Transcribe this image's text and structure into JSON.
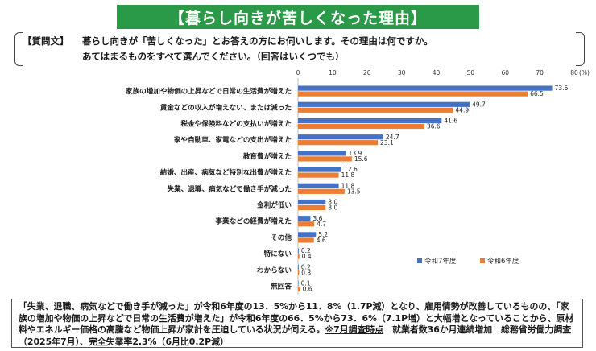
{
  "title": "【暮らし向きが苦しくなった理由】",
  "question": {
    "label": "【質問文】",
    "line1": "暮らし向きが「苦しくなった」とお答えの方にお伺いします。その理由は何ですか。",
    "line2": "あてはまるものをすべて選んでください。（回答はいくつでも）"
  },
  "chart_data": {
    "type": "bar",
    "orientation": "horizontal",
    "unit_label": "(%)",
    "xlim": [
      0,
      80
    ],
    "ticks": [
      "0",
      "10",
      "20",
      "30",
      "40",
      "50",
      "60",
      "70",
      "80"
    ],
    "categories": [
      "家族の増加や物価の上昇などで日常の生活費が増えた",
      "賃金などの収入が増えない、または減った",
      "税金や保険料などの支払いが増えた",
      "家や自動車、家電などの支出が増えた",
      "教育費が増えた",
      "結婚、出産、病気など特別な出費が増えた",
      "失業、退職、病気などで働き手が減った",
      "金利が低い",
      "事業などの経費が増えた",
      "その他",
      "特にない",
      "わからない",
      "無回答"
    ],
    "series": [
      {
        "name": "令和7年度",
        "color": "#4472c4",
        "values": [
          73.6,
          49.7,
          41.6,
          24.7,
          13.9,
          12.6,
          11.8,
          8.0,
          3.6,
          5.2,
          0.2,
          0.2,
          0.1
        ],
        "labels": [
          "73.6",
          "49.7",
          "41.6",
          "24.7",
          "13.9",
          "12.6",
          "11.8",
          "8.0",
          "3.6",
          "5.2",
          "0.2",
          "0.2",
          "0.1"
        ]
      },
      {
        "name": "令和6年度",
        "color": "#ed7d31",
        "values": [
          66.5,
          44.9,
          36.6,
          23.1,
          15.6,
          11.8,
          13.5,
          8.0,
          4.7,
          4.6,
          0.4,
          0.3,
          0.6
        ],
        "labels": [
          "66.5",
          "44.9",
          "36.6",
          "23.1",
          "15.6",
          "11.8",
          "13.5",
          "8.0",
          "4.7",
          "4.6",
          "0.4",
          "0.3",
          "0.6"
        ]
      }
    ]
  },
  "note": {
    "text": "「失業、退職、病気などで働き手が減った」が令和6年度の13．5%から11．8%（1.7P減）となり、雇用情勢が改善しているものの、「家族の増加や物価の上昇などで日常の生活費が増えた」が令和6年度の66．5%から73．6%（7.1P増）と大幅増となっていることから、原材料やエネルギー価格の高騰など物価上昇が家計を圧迫している状況が伺える。",
    "survey": "※7月調査時点",
    "source": "就業者数36か月連続増加　総務省労働力調査（2025年7月）、完全失業率2.3%（6月比0.2P減）"
  }
}
